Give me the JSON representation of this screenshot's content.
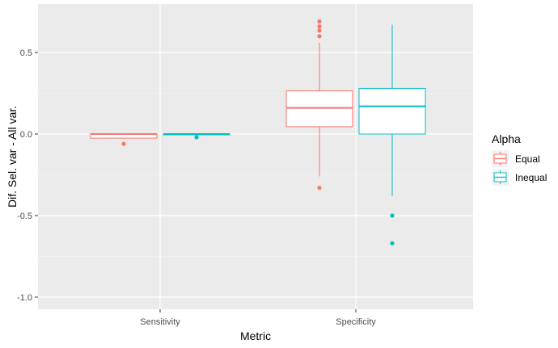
{
  "chart_data": {
    "type": "boxplot",
    "xlabel": "Metric",
    "ylabel": "Dif. Sel. var - All var.",
    "categories": [
      "Sensitivity",
      "Specificity"
    ],
    "ylim": [
      -1.05,
      0.73
    ],
    "yticks": [
      0.5,
      0.0,
      -0.5,
      -1.0
    ],
    "ytick_labels": [
      "0.5",
      "0.0",
      "-0.5",
      "-1.0"
    ],
    "grid": true,
    "legend": {
      "title": "Alpha",
      "position": "right"
    },
    "colors": {
      "Equal": "#F8766D",
      "Inequal": "#00BFC4",
      "panel": "#EBEBEB",
      "grid": "#FFFFFF"
    },
    "series": [
      {
        "name": "Equal",
        "boxes": [
          {
            "category": "Sensitivity",
            "min": -0.03,
            "q1": -0.025,
            "median": 0.0,
            "q3": 0.0,
            "max": 0.0,
            "outliers": [
              -0.06
            ]
          },
          {
            "category": "Specificity",
            "min": -0.26,
            "q1": 0.045,
            "median": 0.16,
            "q3": 0.265,
            "max": 0.56,
            "outliers": [
              0.6,
              0.635,
              0.66,
              0.69,
              -0.33
            ]
          }
        ]
      },
      {
        "name": "Inequal",
        "boxes": [
          {
            "category": "Sensitivity",
            "min": 0.0,
            "q1": 0.0,
            "median": 0.0,
            "q3": 0.0,
            "max": 0.0,
            "outliers": [
              -0.02
            ]
          },
          {
            "category": "Specificity",
            "min": -0.38,
            "q1": 0.0,
            "median": 0.17,
            "q3": 0.28,
            "max": 0.67,
            "outliers": [
              -0.5,
              -0.67
            ]
          }
        ]
      }
    ]
  }
}
